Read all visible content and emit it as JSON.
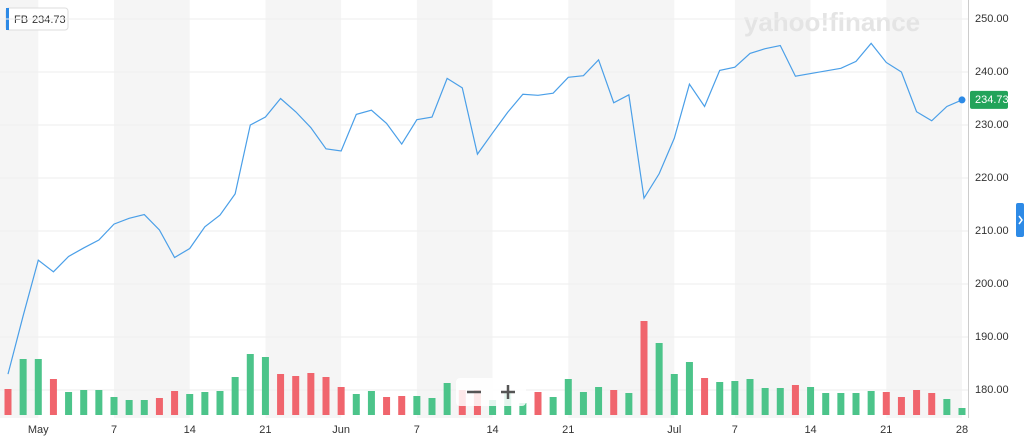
{
  "chart_data": {
    "type": "line",
    "ticker": "FB",
    "watermark": "yahoo!finance",
    "categories": [
      null,
      null,
      "May",
      null,
      null,
      null,
      null,
      "7",
      null,
      null,
      null,
      null,
      "14",
      null,
      null,
      null,
      null,
      "21",
      null,
      null,
      null,
      null,
      "Jun",
      null,
      null,
      null,
      null,
      "7",
      null,
      null,
      null,
      null,
      "14",
      null,
      null,
      null,
      null,
      "21",
      null,
      null,
      null,
      null,
      null,
      null,
      "Jul",
      null,
      null,
      null,
      "7",
      null,
      null,
      null,
      null,
      "14",
      null,
      null,
      null,
      null,
      "21",
      null,
      null,
      null,
      null,
      "28"
    ],
    "series": [
      {
        "name": "FB",
        "color": "#4a9fe8",
        "values": [
          183,
          194,
          204.5,
          202.3,
          205.2,
          206.8,
          208.3,
          211.3,
          212.4,
          213.1,
          210.2,
          205,
          206.7,
          210.8,
          213,
          217,
          230,
          231.5,
          235,
          232.5,
          229.5,
          225.5,
          225.1,
          232,
          232.8,
          230.3,
          226.4,
          231,
          231.5,
          238.8,
          237,
          224.5,
          228.5,
          232.4,
          235.8,
          235.6,
          236,
          239,
          239.3,
          242.3,
          234.2,
          235.7,
          216.2,
          220.8,
          227.5,
          237.7,
          233.5,
          240.3,
          240.9,
          243.5,
          244.4,
          245,
          239.2,
          239.7,
          240.2,
          240.7,
          242,
          245.4,
          241.8,
          240,
          232.5,
          230.8,
          233.5,
          234.73
        ]
      },
      {
        "name": "Volume",
        "type": "bar",
        "values": [
          26,
          56,
          56,
          36,
          23,
          25,
          25,
          18,
          15,
          15,
          17,
          24,
          21,
          23,
          24,
          38,
          61,
          58,
          41,
          39,
          42,
          38,
          28,
          21,
          24,
          18,
          19,
          19,
          17,
          32,
          25,
          25,
          15,
          22,
          12,
          23,
          18,
          36,
          23,
          28,
          25,
          22,
          94,
          72,
          41,
          53,
          37,
          33,
          34,
          36,
          27,
          27,
          30,
          28,
          22,
          22,
          22,
          24,
          23,
          18,
          25,
          22,
          16,
          7
        ],
        "colors": [
          "#f0656d",
          "#4cc48a",
          "#4cc48a",
          "#f0656d",
          "#4cc48a",
          "#4cc48a",
          "#4cc48a",
          "#4cc48a",
          "#4cc48a",
          "#4cc48a",
          "#f0656d",
          "#f0656d",
          "#4cc48a",
          "#4cc48a",
          "#4cc48a",
          "#4cc48a",
          "#4cc48a",
          "#4cc48a",
          "#f0656d",
          "#f0656d",
          "#f0656d",
          "#f0656d",
          "#f0656d",
          "#4cc48a",
          "#4cc48a",
          "#f0656d",
          "#f0656d",
          "#4cc48a",
          "#4cc48a",
          "#4cc48a",
          "#f0656d",
          "#f0656d",
          "#4cc48a",
          "#4cc48a",
          "#4cc48a",
          "#f0656d",
          "#4cc48a",
          "#4cc48a",
          "#4cc48a",
          "#4cc48a",
          "#f0656d",
          "#4cc48a",
          "#f0656d",
          "#4cc48a",
          "#4cc48a",
          "#4cc48a",
          "#f0656d",
          "#4cc48a",
          "#4cc48a",
          "#4cc48a",
          "#4cc48a",
          "#4cc48a",
          "#f0656d",
          "#4cc48a",
          "#4cc48a",
          "#4cc48a",
          "#4cc48a",
          "#4cc48a",
          "#f0656d",
          "#f0656d",
          "#f0656d",
          "#f0656d",
          "#4cc48a",
          "#4cc48a"
        ]
      }
    ],
    "price_color": "#22a35a",
    "ylim": [
      176.5,
      253
    ],
    "yticks": [
      {
        "value": 180,
        "label": "180.00"
      },
      {
        "value": 190,
        "label": "190.00"
      },
      {
        "value": 200,
        "label": "200.00"
      },
      {
        "value": 210,
        "label": "210.00"
      },
      {
        "value": 220,
        "label": "220.00"
      },
      {
        "value": 230,
        "label": "230.00"
      },
      {
        "value": 240,
        "label": "240.00"
      },
      {
        "value": 250,
        "label": "250.00"
      }
    ],
    "grid": true
  }
}
